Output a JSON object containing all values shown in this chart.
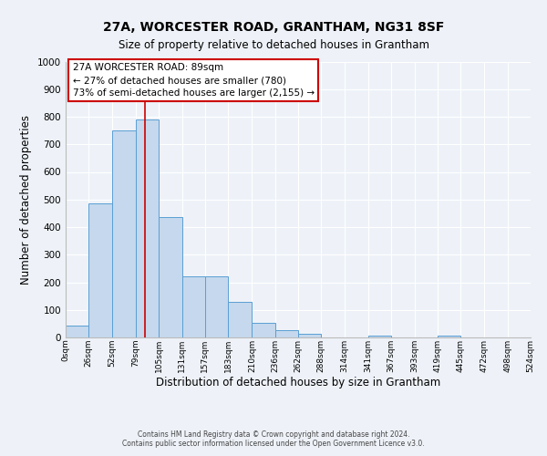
{
  "title": "27A, WORCESTER ROAD, GRANTHAM, NG31 8SF",
  "subtitle": "Size of property relative to detached houses in Grantham",
  "xlabel": "Distribution of detached houses by size in Grantham",
  "ylabel": "Number of detached properties",
  "bin_edges": [
    0,
    26,
    52,
    79,
    105,
    131,
    157,
    183,
    210,
    236,
    262,
    288,
    314,
    341,
    367,
    393,
    419,
    445,
    472,
    498,
    524
  ],
  "bar_heights": [
    42,
    485,
    750,
    790,
    438,
    220,
    220,
    128,
    52,
    28,
    14,
    0,
    0,
    8,
    0,
    0,
    8,
    0,
    0,
    0
  ],
  "bar_color": "#c5d8ed",
  "bar_edgecolor": "#5a9fd4",
  "bar_linewidth": 0.7,
  "vline_x": 89,
  "vline_color": "#cc0000",
  "vline_linewidth": 1.2,
  "annotation_box_text": "27A WORCESTER ROAD: 89sqm\n← 27% of detached houses are smaller (780)\n73% of semi-detached houses are larger (2,155) →",
  "box_edgecolor": "#cc0000",
  "ylim": [
    0,
    1000
  ],
  "yticks": [
    0,
    100,
    200,
    300,
    400,
    500,
    600,
    700,
    800,
    900,
    1000
  ],
  "tick_labels": [
    "0sqm",
    "26sqm",
    "52sqm",
    "79sqm",
    "105sqm",
    "131sqm",
    "157sqm",
    "183sqm",
    "210sqm",
    "236sqm",
    "262sqm",
    "288sqm",
    "314sqm",
    "341sqm",
    "367sqm",
    "393sqm",
    "419sqm",
    "445sqm",
    "472sqm",
    "498sqm",
    "524sqm"
  ],
  "bg_color": "#eef2f8",
  "grid_color": "#ffffff",
  "footer1": "Contains HM Land Registry data © Crown copyright and database right 2024.",
  "footer2": "Contains public sector information licensed under the Open Government Licence v3.0."
}
